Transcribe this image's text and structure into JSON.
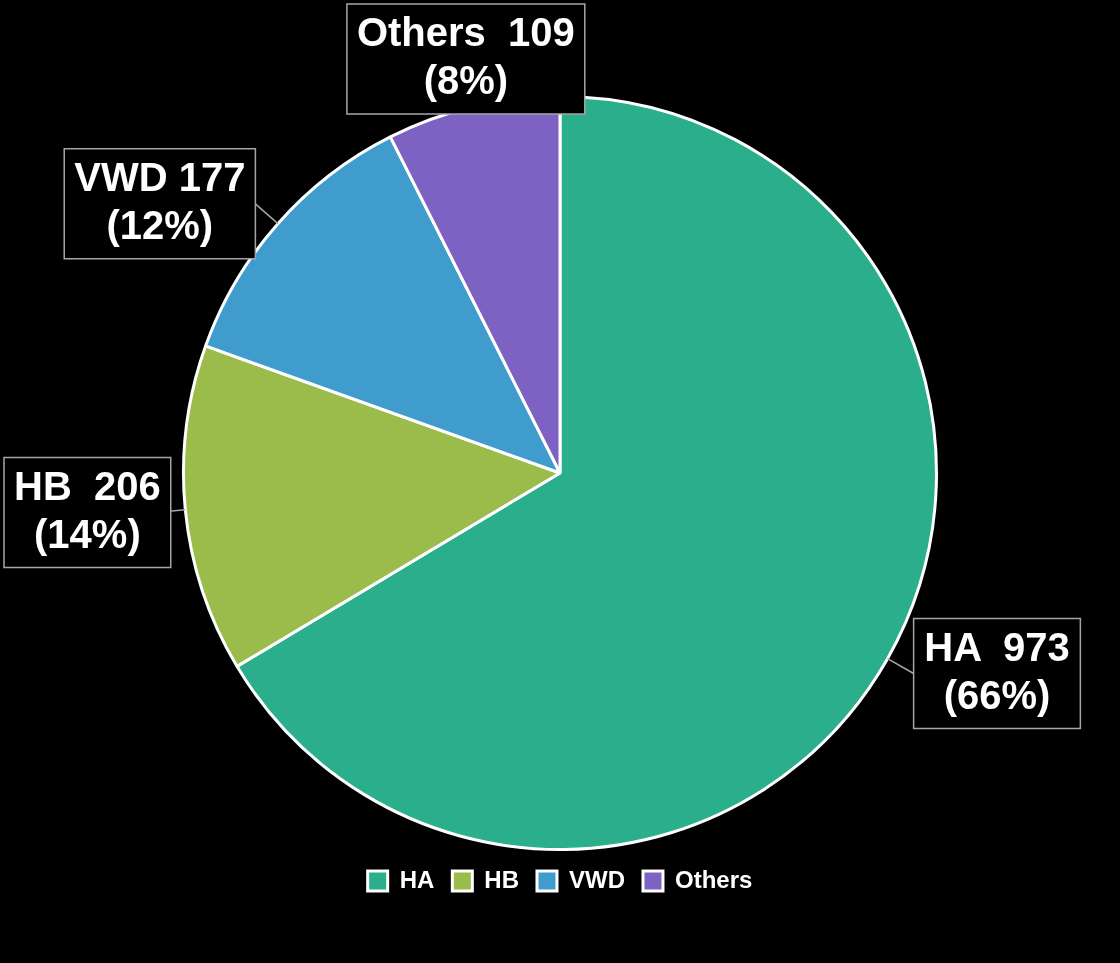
{
  "chart_data": {
    "type": "pie",
    "categories": [
      "HA",
      "HB",
      "VWD",
      "Others"
    ],
    "values": [
      973,
      206,
      177,
      109
    ],
    "colors": [
      "#2bae8c",
      "#9bbb4a",
      "#3f9ccc",
      "#7d62c4"
    ],
    "value_labels": [
      "HA  973\n(66%)",
      "HB  206\n(14%)",
      "VWD 177\n(12%)",
      "Others  109\n(8%)"
    ],
    "legend": "bottom"
  }
}
